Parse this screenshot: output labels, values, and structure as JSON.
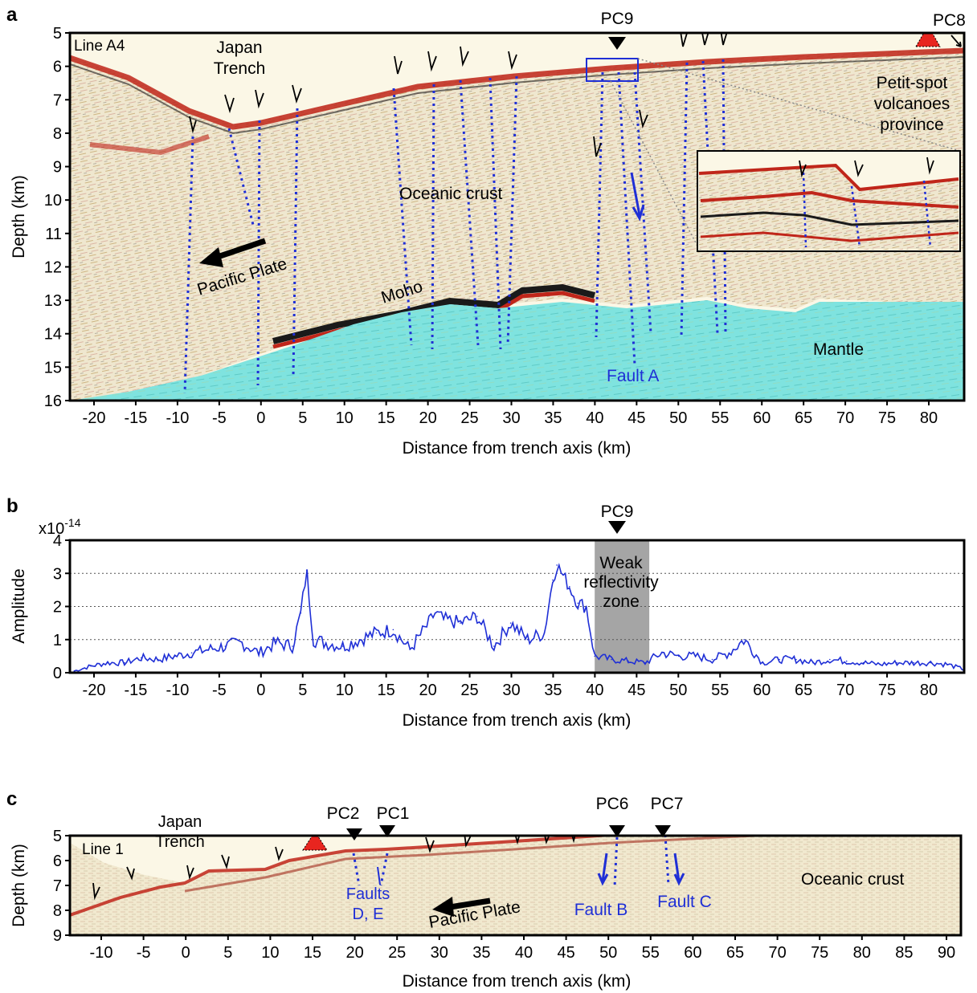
{
  "panel_a": {
    "letter": "a",
    "line_name": "Line A4",
    "ylabel": "Depth (km)",
    "xlabel": "Distance from trench axis (km)",
    "yticks": [
      "5",
      "6",
      "7",
      "8",
      "9",
      "10",
      "11",
      "12",
      "13",
      "14",
      "15",
      "16"
    ],
    "xticks": [
      "-20",
      "-15",
      "-10",
      "-5",
      "0",
      "5",
      "10",
      "15",
      "20",
      "25",
      "30",
      "35",
      "40",
      "45",
      "50",
      "55",
      "60",
      "65",
      "70",
      "75",
      "80"
    ],
    "labels": {
      "trench": "Japan\nTrench",
      "crust": "Oceanic crust",
      "plate": "Pacific Plate",
      "moho": "Moho",
      "mantle": "Mantle",
      "fault": "Fault A",
      "pc9": "PC9",
      "pc8": "PC8",
      "petit": "Petit-spot\nvolcanoes\nprovince"
    },
    "colors": {
      "mantle": "#7fe3df",
      "crust": "#f3ecd6",
      "reflector": "#c0261a",
      "fault": "#1f2fd6",
      "volcano": "#e8251f"
    }
  },
  "panel_b": {
    "letter": "b",
    "ylabel": "Amplitude",
    "xlabel": "Distance from trench axis (km)",
    "exponent": "x10",
    "exponent_sup": "-14",
    "pc9": "PC9",
    "zone_label": "Weak\nreflectivity\nzone",
    "yticks": [
      "0",
      "1",
      "2",
      "3",
      "4"
    ],
    "xticks": [
      "-20",
      "-15",
      "-10",
      "-5",
      "0",
      "5",
      "10",
      "15",
      "20",
      "25",
      "30",
      "35",
      "40",
      "45",
      "50",
      "55",
      "60",
      "65",
      "70",
      "75",
      "80"
    ]
  },
  "panel_c": {
    "letter": "c",
    "line_name": "Line 1",
    "ylabel": "Depth (km)",
    "xlabel": "Distance from trench axis (km)",
    "yticks": [
      "5",
      "6",
      "7",
      "8",
      "9"
    ],
    "xticks": [
      "-10",
      "-5",
      "0",
      "5",
      "10",
      "15",
      "20",
      "25",
      "30",
      "35",
      "40",
      "45",
      "50",
      "55",
      "60",
      "65",
      "70",
      "75",
      "80",
      "85",
      "90"
    ],
    "labels": {
      "trench": "Japan\nTrench",
      "crust": "Oceanic crust",
      "plate": "Pacific Plate",
      "pc2": "PC2",
      "pc1": "PC1",
      "pc6": "PC6",
      "pc7": "PC7",
      "faults_de": "Faults\nD, E",
      "fault_b": "Fault B",
      "fault_c": "Fault C"
    }
  },
  "chart_data": {
    "type": "line",
    "title": "",
    "xlabel": "Distance from trench axis (km)",
    "ylabel": "Amplitude",
    "xlim": [
      -22.5,
      84
    ],
    "ylim": [
      0,
      4
    ],
    "y_scale_note": "x10^-14",
    "shaded_region": {
      "x": [
        40,
        46.5
      ],
      "label": "Weak reflectivity zone"
    },
    "x": [
      -22,
      -20,
      -18,
      -16,
      -14,
      -12,
      -10,
      -8,
      -6,
      -4,
      -2,
      0,
      2,
      4,
      5,
      5.7,
      6.5,
      8,
      10,
      12,
      14,
      16,
      18,
      20,
      21,
      22,
      24,
      26,
      28,
      30,
      32,
      34,
      35,
      35.5,
      37,
      38,
      39,
      40,
      42,
      44,
      46,
      48,
      50,
      52,
      54,
      56,
      57.8,
      60,
      62,
      64,
      66,
      68,
      70,
      72,
      74,
      76,
      78,
      80,
      82,
      84
    ],
    "values": [
      0.05,
      0.2,
      0.3,
      0.3,
      0.45,
      0.4,
      0.5,
      0.6,
      0.7,
      0.8,
      0.9,
      0.6,
      0.9,
      0.8,
      1.8,
      3.1,
      1.0,
      0.9,
      0.8,
      1.0,
      1.2,
      1.3,
      0.7,
      1.4,
      1.8,
      1.6,
      1.5,
      1.7,
      0.8,
      1.5,
      1.0,
      1.2,
      2.8,
      3.25,
      2.6,
      2.1,
      2.0,
      0.5,
      0.4,
      0.35,
      0.3,
      0.6,
      0.5,
      0.5,
      0.4,
      0.6,
      1.0,
      0.3,
      0.4,
      0.4,
      0.3,
      0.4,
      0.35,
      0.3,
      0.25,
      0.3,
      0.3,
      0.3,
      0.25,
      0.1
    ]
  }
}
